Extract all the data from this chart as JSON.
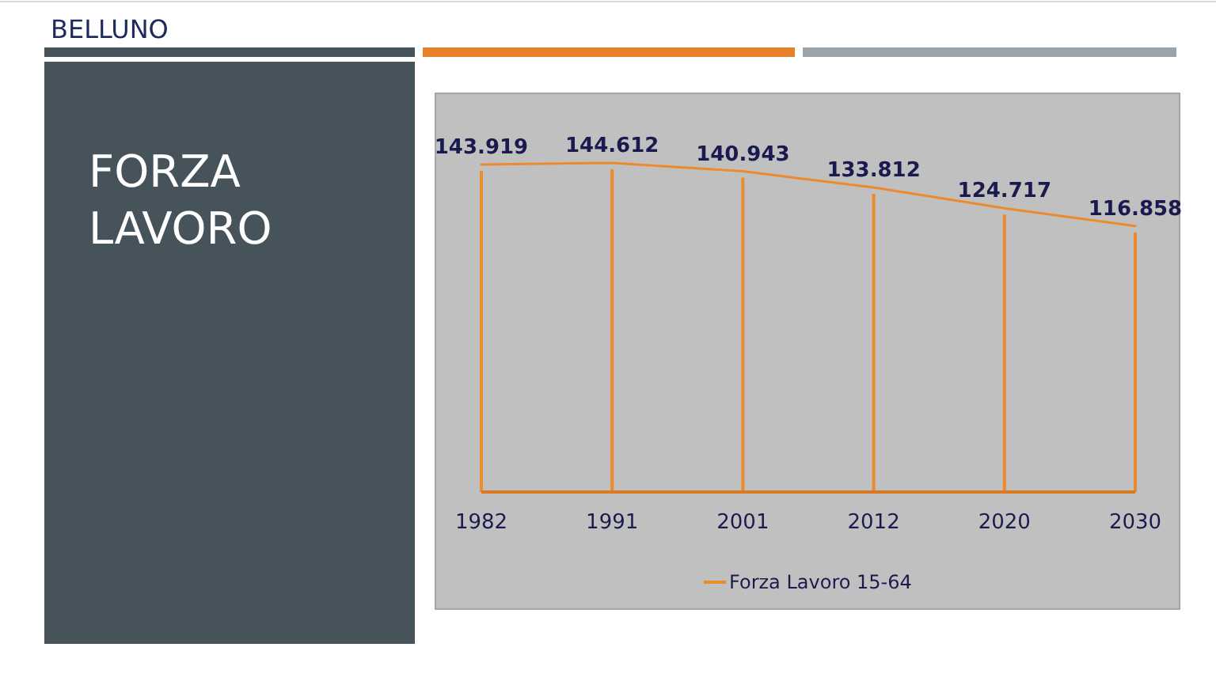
{
  "chart_data": {
    "type": "line",
    "title": "BELLUNO",
    "subtitle": "FORZA LAVORO",
    "categories": [
      "1982",
      "1991",
      "2001",
      "2012",
      "2020",
      "2030"
    ],
    "series": [
      {
        "name": "Forza Lavoro 15-64",
        "color": "#ed8a2e",
        "values": [
          143.919,
          144.612,
          140.943,
          133.812,
          124.717,
          116.858
        ]
      }
    ],
    "data_labels": true,
    "legend": "bottom",
    "tick_labels": "x",
    "grid": "x"
  }
}
